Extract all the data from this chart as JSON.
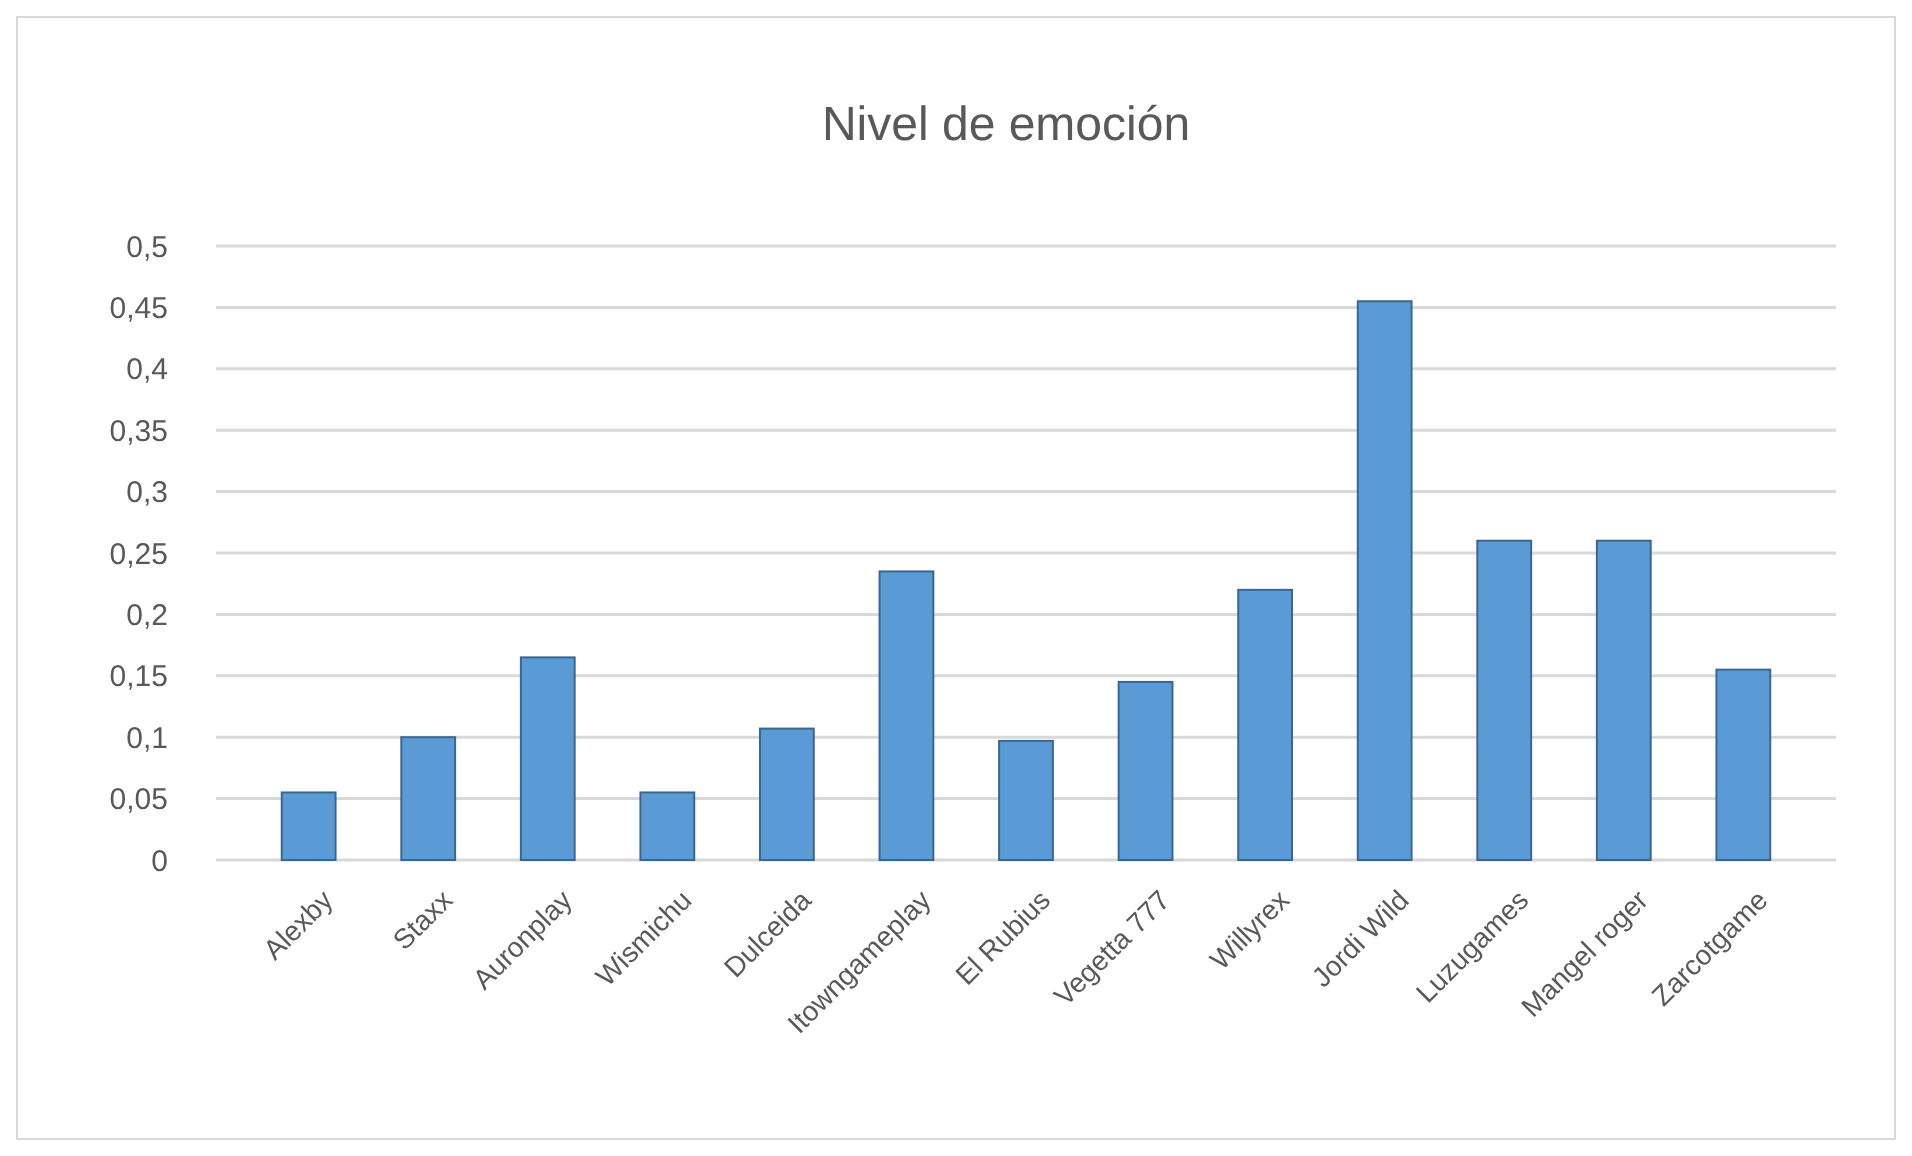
{
  "chart_data": {
    "type": "bar",
    "title": "Nivel de emoción",
    "categories": [
      "Alexby",
      "Staxx",
      "Auronplay",
      "Wismichu",
      "Dulceida",
      "Itowngameplay",
      "El Rubius",
      "Vegetta 777",
      "Willyrex",
      "Jordi Wild",
      "Luzugames",
      "Mangel roger",
      "Zarcotgame"
    ],
    "values": [
      0.055,
      0.1,
      0.165,
      0.055,
      0.107,
      0.235,
      0.097,
      0.145,
      0.22,
      0.455,
      0.26,
      0.26,
      0.155
    ],
    "color": "#5b9bd5",
    "ylim": [
      0,
      0.5
    ],
    "yticks": [
      0,
      {
        "value": 0.05,
        "label": "0,05"
      },
      {
        "value": 0.1,
        "label": "0,1"
      },
      {
        "value": 0.15,
        "label": "0,15"
      },
      {
        "value": 0.2,
        "label": "0,2"
      },
      {
        "value": 0.25,
        "label": "0,25"
      },
      {
        "value": 0.3,
        "label": "0,3"
      },
      {
        "value": 0.35,
        "label": "0,35"
      },
      {
        "value": 0.4,
        "label": "0,4"
      },
      {
        "value": 0.45,
        "label": "0,45"
      },
      {
        "value": 0.5,
        "label": "0,5"
      }
    ],
    "grid": true
  }
}
